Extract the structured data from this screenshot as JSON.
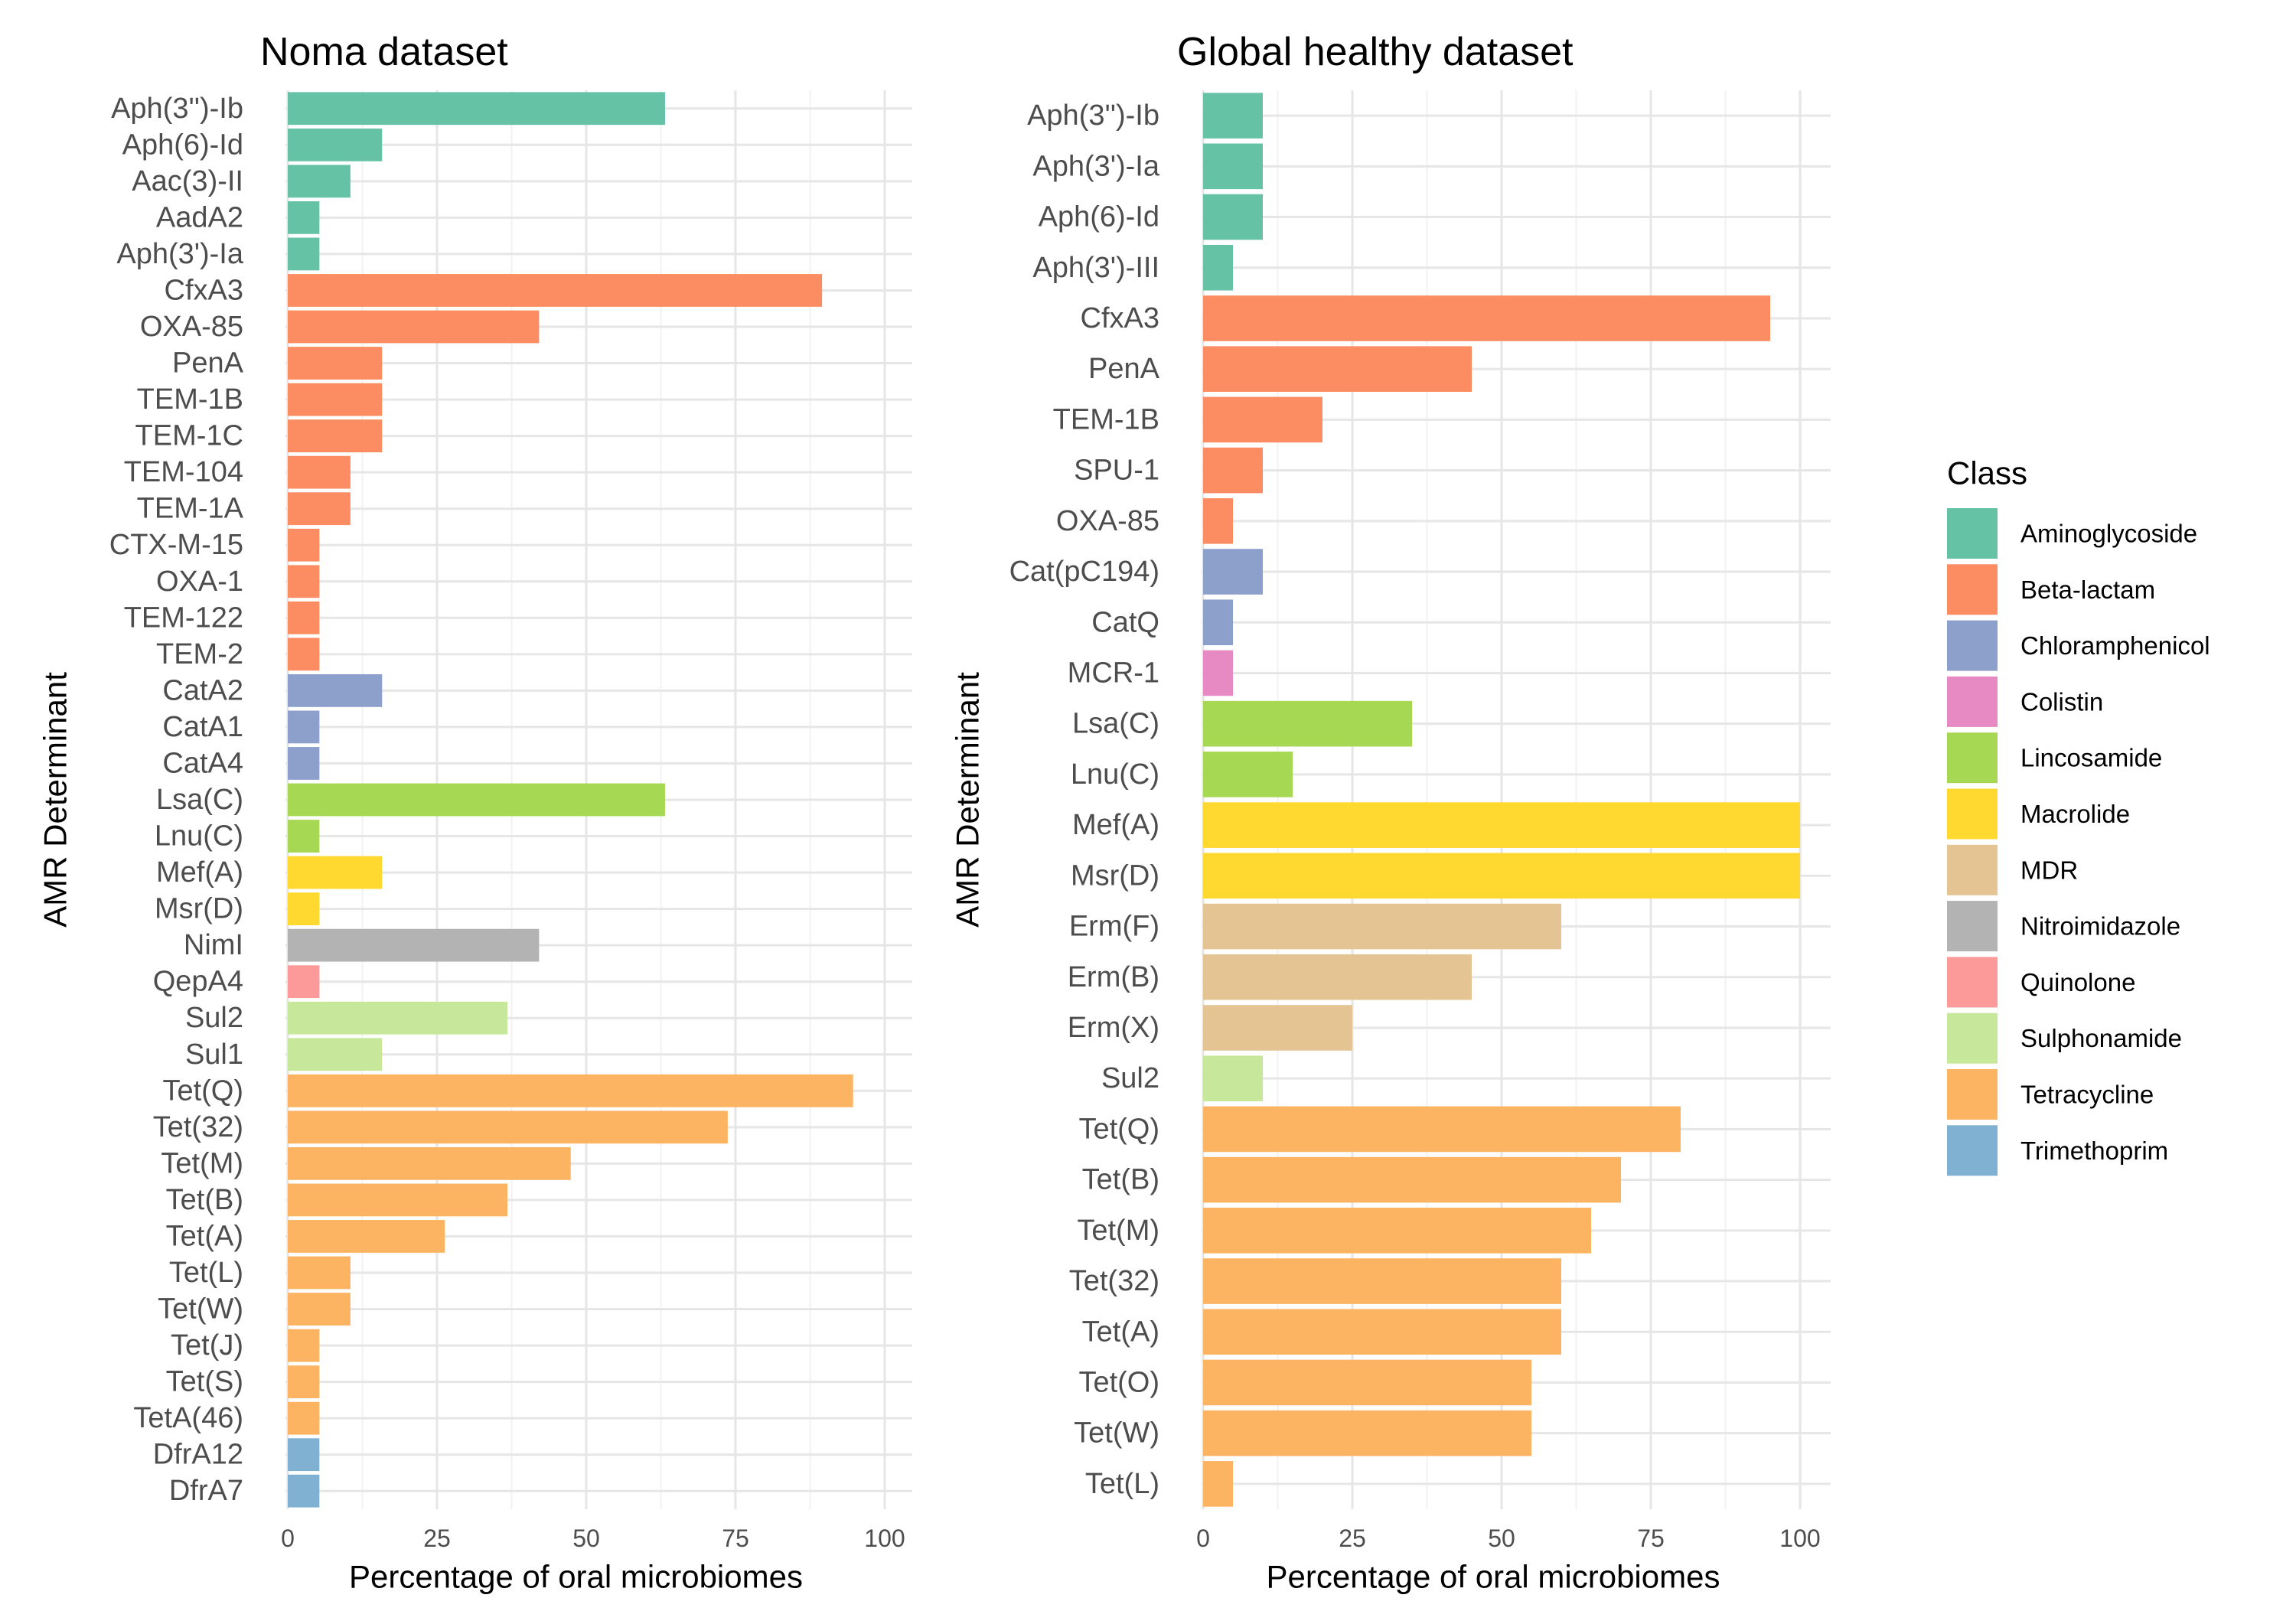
{
  "chart_data": [
    {
      "type": "bar",
      "orientation": "horizontal",
      "title": "Noma dataset",
      "xlabel": "Percentage of oral microbiomes",
      "ylabel": "AMR Determinant",
      "xlim": [
        0,
        100
      ],
      "xticks": [
        "0",
        "25",
        "50",
        "75",
        "100"
      ],
      "grid": true,
      "categories": [
        "Aph(3'')-Ib",
        "Aph(6)-Id",
        "Aac(3)-II",
        "AadA2",
        "Aph(3')-Ia",
        "CfxA3",
        "OXA-85",
        "PenA",
        "TEM-1B",
        "TEM-1C",
        "TEM-104",
        "TEM-1A",
        "CTX-M-15",
        "OXA-1",
        "TEM-122",
        "TEM-2",
        "CatA2",
        "CatA1",
        "CatA4",
        "Lsa(C)",
        "Lnu(C)",
        "Mef(A)",
        "Msr(D)",
        "NimI",
        "QepA4",
        "Sul2",
        "Sul1",
        "Tet(Q)",
        "Tet(32)",
        "Tet(M)",
        "Tet(B)",
        "Tet(A)",
        "Tet(L)",
        "Tet(W)",
        "Tet(J)",
        "Tet(S)",
        "TetA(46)",
        "DfrA12",
        "DfrA7"
      ],
      "values": [
        63.2,
        15.8,
        10.5,
        5.3,
        5.3,
        89.5,
        42.1,
        15.8,
        15.8,
        15.8,
        10.5,
        10.5,
        5.3,
        5.3,
        5.3,
        5.3,
        15.8,
        5.3,
        5.3,
        63.2,
        5.3,
        15.8,
        5.3,
        42.1,
        5.3,
        36.8,
        15.8,
        94.7,
        73.7,
        47.4,
        36.8,
        26.3,
        10.5,
        10.5,
        5.3,
        5.3,
        5.3,
        5.3,
        5.3
      ],
      "classes": [
        "Aminoglycoside",
        "Aminoglycoside",
        "Aminoglycoside",
        "Aminoglycoside",
        "Aminoglycoside",
        "Beta-lactam",
        "Beta-lactam",
        "Beta-lactam",
        "Beta-lactam",
        "Beta-lactam",
        "Beta-lactam",
        "Beta-lactam",
        "Beta-lactam",
        "Beta-lactam",
        "Beta-lactam",
        "Beta-lactam",
        "Chloramphenicol",
        "Chloramphenicol",
        "Chloramphenicol",
        "Lincosamide",
        "Lincosamide",
        "Macrolide",
        "Macrolide",
        "Nitroimidazole",
        "Quinolone",
        "Sulphonamide",
        "Sulphonamide",
        "Tetracycline",
        "Tetracycline",
        "Tetracycline",
        "Tetracycline",
        "Tetracycline",
        "Tetracycline",
        "Tetracycline",
        "Tetracycline",
        "Tetracycline",
        "Tetracycline",
        "Trimethoprim",
        "Trimethoprim"
      ]
    },
    {
      "type": "bar",
      "orientation": "horizontal",
      "title": "Global healthy dataset",
      "xlabel": "Percentage of oral microbiomes",
      "ylabel": "AMR Determinant",
      "xlim": [
        0,
        100
      ],
      "xticks": [
        "0",
        "25",
        "50",
        "75",
        "100"
      ],
      "grid": true,
      "categories": [
        "Aph(3'')-Ib",
        "Aph(3')-Ia",
        "Aph(6)-Id",
        "Aph(3')-III",
        "CfxA3",
        "PenA",
        "TEM-1B",
        "SPU-1",
        "OXA-85",
        "Cat(pC194)",
        "CatQ",
        "MCR-1",
        "Lsa(C)",
        "Lnu(C)",
        "Mef(A)",
        "Msr(D)",
        "Erm(F)",
        "Erm(B)",
        "Erm(X)",
        "Sul2",
        "Tet(Q)",
        "Tet(B)",
        "Tet(M)",
        "Tet(32)",
        "Tet(A)",
        "Tet(O)",
        "Tet(W)",
        "Tet(L)"
      ],
      "values": [
        10,
        10,
        10,
        5,
        95,
        45,
        20,
        10,
        5,
        10,
        5,
        5,
        35,
        15,
        100,
        100,
        60,
        45,
        25,
        10,
        80,
        70,
        65,
        60,
        60,
        55,
        55,
        5
      ],
      "classes": [
        "Aminoglycoside",
        "Aminoglycoside",
        "Aminoglycoside",
        "Aminoglycoside",
        "Beta-lactam",
        "Beta-lactam",
        "Beta-lactam",
        "Beta-lactam",
        "Beta-lactam",
        "Chloramphenicol",
        "Chloramphenicol",
        "Colistin",
        "Lincosamide",
        "Lincosamide",
        "Macrolide",
        "Macrolide",
        "MDR",
        "MDR",
        "MDR",
        "Sulphonamide",
        "Tetracycline",
        "Tetracycline",
        "Tetracycline",
        "Tetracycline",
        "Tetracycline",
        "Tetracycline",
        "Tetracycline",
        "Tetracycline"
      ]
    }
  ],
  "legend": {
    "title": "Class",
    "placement": "right",
    "items": [
      {
        "label": "Aminoglycoside",
        "color": "#66C2A5"
      },
      {
        "label": "Beta-lactam",
        "color": "#FC8D62"
      },
      {
        "label": "Chloramphenicol",
        "color": "#8DA0CB"
      },
      {
        "label": "Colistin",
        "color": "#E78AC3"
      },
      {
        "label": "Lincosamide",
        "color": "#A6D854"
      },
      {
        "label": "Macrolide",
        "color": "#FFD92F"
      },
      {
        "label": "MDR",
        "color": "#E5C494"
      },
      {
        "label": "Nitroimidazole",
        "color": "#B3B3B3"
      },
      {
        "label": "Quinolone",
        "color": "#FC9A9A"
      },
      {
        "label": "Sulphonamide",
        "color": "#C7E89A"
      },
      {
        "label": "Tetracycline",
        "color": "#FDB462"
      },
      {
        "label": "Trimethoprim",
        "color": "#80B1D3"
      }
    ]
  }
}
